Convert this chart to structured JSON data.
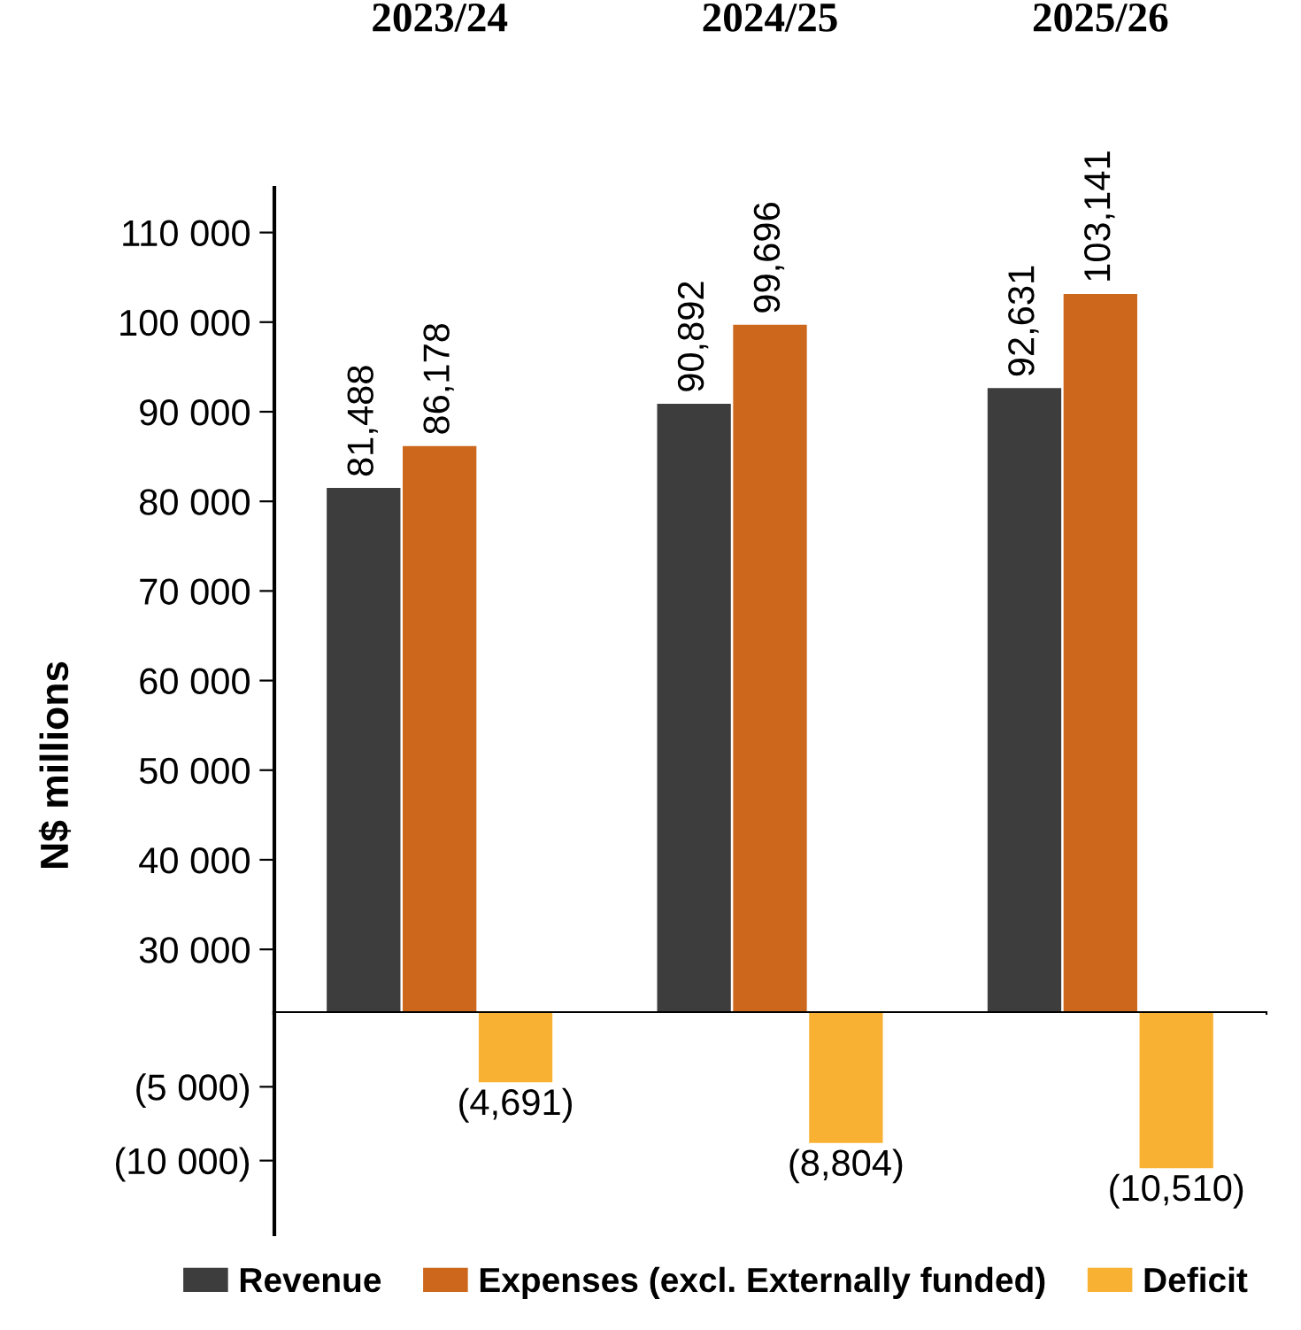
{
  "chart_data": [
    {
      "type": "bar",
      "categories": [
        "2023/24",
        "2024/25",
        "2025/26"
      ],
      "ylabel": "N$ millions",
      "series": [
        {
          "name": "Revenue",
          "color": "#3d3d3d",
          "values": [
            81488,
            90892,
            92631
          ],
          "value_labels": [
            "81,488",
            "90,892",
            "92,631"
          ]
        },
        {
          "name": "Expenses (excl. Externally funded)",
          "color": "#cc671b",
          "values": [
            86178,
            99696,
            103141
          ],
          "value_labels": [
            "86,178",
            "99,696",
            "103,141"
          ]
        },
        {
          "name": "Deficit",
          "color": "#f8b133",
          "values": [
            null,
            null,
            null
          ]
        }
      ],
      "ylim": [
        22900,
        115000
      ],
      "yticks": [
        {
          "value": 30000,
          "label": "30 000"
        },
        {
          "value": 40000,
          "label": "40 000"
        },
        {
          "value": 50000,
          "label": "50 000"
        },
        {
          "value": 60000,
          "label": "60 000"
        },
        {
          "value": 70000,
          "label": "70 000"
        },
        {
          "value": 80000,
          "label": "80 000"
        },
        {
          "value": 90000,
          "label": "90 000"
        },
        {
          "value": 100000,
          "label": "100 000"
        },
        {
          "value": 110000,
          "label": "110 000"
        }
      ],
      "legend": "bottom",
      "grid": false
    },
    {
      "type": "bar",
      "categories": [
        null,
        null,
        null
      ],
      "tick_labels": "y",
      "series": [
        {
          "values": [
            null,
            null,
            null
          ]
        },
        {
          "values": [
            null,
            null,
            null
          ]
        },
        {
          "color": "#f8b133",
          "values": [
            -4691,
            -8804,
            -10510
          ],
          "value_labels": [
            "(4,691)",
            "(8,804)",
            "(10,510)"
          ]
        }
      ],
      "ylim": [
        -15000,
        0
      ],
      "yticks": [
        {
          "value": -5000,
          "label": "(5 000)"
        },
        {
          "value": -10000,
          "label": "(10 000)"
        }
      ],
      "grid": false
    }
  ]
}
